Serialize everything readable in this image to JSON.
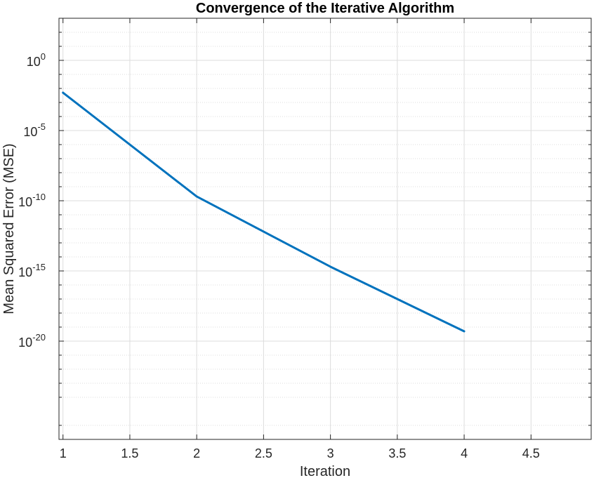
{
  "chart_data": {
    "type": "line",
    "title": "Convergence of the Iterative Algorithm",
    "xlabel": "Iteration",
    "ylabel": "Mean Squared Error (MSE)",
    "x": [
      1,
      2,
      3,
      4
    ],
    "series": [
      {
        "values": [
          0.005,
          2e-10,
          2e-15,
          5e-20
        ]
      }
    ],
    "xlim": [
      0.97,
      4.95
    ],
    "ylim": [
      1e-27,
      1000.0
    ],
    "y_scale": "log",
    "xticks": [
      "1",
      "1.5",
      "2",
      "2.5",
      "3",
      "3.5",
      "4",
      "4.5"
    ],
    "yticks": [
      {
        "base": "10",
        "exp": "0"
      },
      {
        "base": "10",
        "exp": "-5"
      },
      {
        "base": "10",
        "exp": "-10"
      },
      {
        "base": "10",
        "exp": "-15"
      },
      {
        "base": "10",
        "exp": "-20"
      }
    ],
    "grid": true,
    "minor_grid": true,
    "line_color": "#0072BD",
    "grid_color": "#dcdcdc",
    "axis_color": "#262626"
  }
}
